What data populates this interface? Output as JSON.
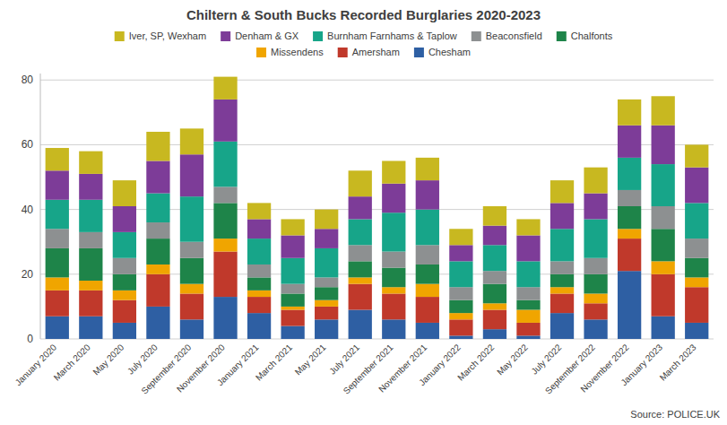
{
  "chart_data": {
    "type": "bar",
    "stacked": true,
    "title": "Chiltern & South Bucks Recorded Burglaries 2020-2023",
    "annotations": [
      "Source:  POLICE.UK"
    ],
    "categories": [
      "January 2020",
      "March 2020",
      "May 2020",
      "July 2020",
      "September 2020",
      "November 2020",
      "January 2021",
      "March 2021",
      "May 2021",
      "July 2021",
      "September 2021",
      "November 2021",
      "January 2022",
      "March 2022",
      "May 2022",
      "July 2022",
      "September 2022",
      "November 2022",
      "January 2023",
      "March 2023"
    ],
    "series": [
      {
        "name": "Chesham",
        "color": "#2e5fa3",
        "values": [
          7,
          7,
          5,
          10,
          6,
          13,
          8,
          4,
          6,
          9,
          6,
          5,
          1,
          3,
          1,
          8,
          6,
          21,
          7,
          5
        ]
      },
      {
        "name": "Amersham",
        "color": "#c0392b",
        "values": [
          8,
          8,
          7,
          10,
          8,
          14,
          5,
          5,
          4,
          8,
          8,
          8,
          5,
          6,
          4,
          6,
          5,
          10,
          13,
          11
        ]
      },
      {
        "name": "Missendens",
        "color": "#f0a500",
        "values": [
          4,
          3,
          3,
          3,
          3,
          4,
          2,
          1,
          2,
          2,
          2,
          4,
          2,
          2,
          4,
          2,
          3,
          3,
          4,
          3
        ]
      },
      {
        "name": "Chalfonts",
        "color": "#1e8449",
        "values": [
          9,
          10,
          5,
          8,
          8,
          11,
          4,
          4,
          4,
          5,
          6,
          6,
          4,
          6,
          3,
          4,
          6,
          7,
          10,
          6
        ]
      },
      {
        "name": "Beaconsfield",
        "color": "#8d9091",
        "values": [
          6,
          5,
          5,
          5,
          5,
          5,
          4,
          3,
          3,
          5,
          5,
          6,
          4,
          4,
          4,
          4,
          5,
          5,
          7,
          6
        ]
      },
      {
        "name": "Burnham Farnhams & Taplow",
        "color": "#17a589",
        "values": [
          9,
          10,
          8,
          9,
          14,
          14,
          8,
          8,
          9,
          8,
          12,
          11,
          8,
          8,
          8,
          10,
          12,
          10,
          13,
          11
        ]
      },
      {
        "name": "Denham & GX",
        "color": "#7d3c98",
        "values": [
          9,
          8,
          8,
          10,
          13,
          13,
          6,
          7,
          6,
          7,
          9,
          9,
          5,
          6,
          8,
          8,
          8,
          10,
          12,
          11
        ]
      },
      {
        "name": "Iver, SP, Wexham",
        "color": "#c8b820",
        "values": [
          7,
          7,
          8,
          9,
          8,
          7,
          5,
          5,
          6,
          8,
          7,
          7,
          5,
          6,
          5,
          7,
          8,
          8,
          9,
          7
        ]
      }
    ],
    "ylim": [
      0,
      82
    ],
    "yticks": [
      0,
      20,
      40,
      60,
      80
    ],
    "grid": true,
    "legend": "top"
  }
}
